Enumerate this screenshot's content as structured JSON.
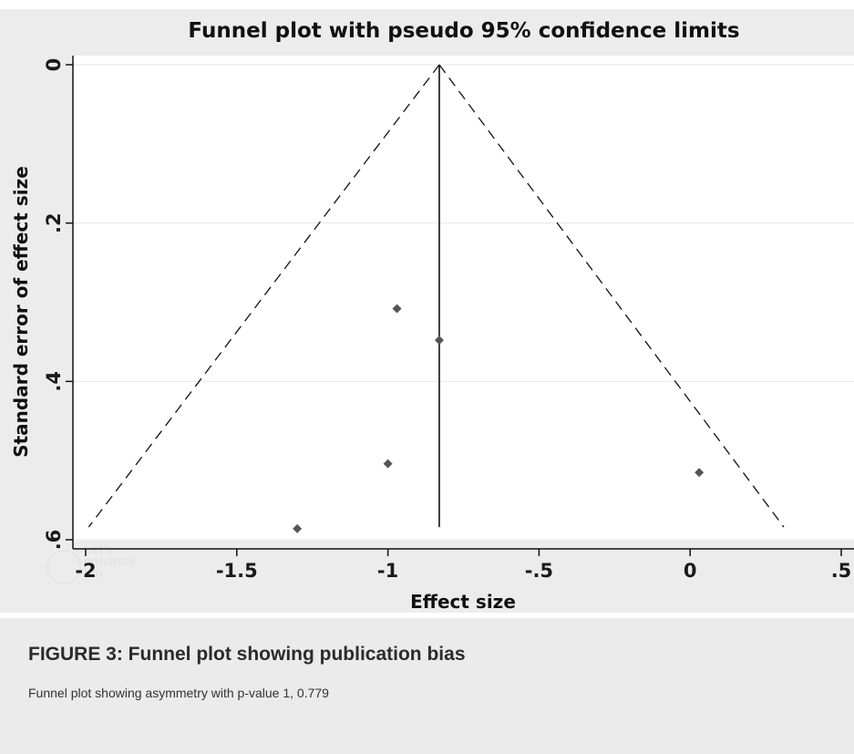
{
  "chart_data": {
    "type": "scatter",
    "title": "Funnel plot with pseudo 95% confidence limits",
    "xlabel": "Effect size",
    "ylabel": "Standard error of effect size",
    "xlim": [
      -2,
      0.5
    ],
    "ylim": [
      0,
      0.6
    ],
    "y_reversed": true,
    "x_ticks": [
      -2,
      -1.5,
      -1,
      -0.5,
      0,
      0.5
    ],
    "x_tick_labels": [
      "-2",
      "-1.5",
      "-1",
      "-.5",
      "0",
      ".5"
    ],
    "y_ticks": [
      0,
      0.2,
      0.4,
      0.6
    ],
    "y_tick_labels": [
      "0",
      ".2",
      ".4",
      ".6"
    ],
    "grid": "horizontal",
    "points": [
      {
        "x": -0.97,
        "y": 0.308
      },
      {
        "x": -0.83,
        "y": 0.348
      },
      {
        "x": -1.0,
        "y": 0.504
      },
      {
        "x": 0.03,
        "y": 0.515
      },
      {
        "x": -1.3,
        "y": 0.586
      }
    ],
    "pooled_estimate": -0.83,
    "pseudo_ci_lines": {
      "apex": {
        "x": -0.83,
        "y": 0
      },
      "left_end": {
        "x": -1.99,
        "y": 0.584
      },
      "right_end": {
        "x": 0.31,
        "y": 0.584
      }
    },
    "colors": {
      "panel": "#ececec",
      "plot_area": "#ffffff",
      "grid": "#e6e6e6",
      "marker": "#555555",
      "line": "#111111"
    },
    "watermark": [
      "Let's",
      "enhance",
      "bio"
    ]
  },
  "caption": {
    "title": "FIGURE 3: Funnel plot showing publication bias",
    "text": "Funnel plot showing asymmetry with p-value 1, 0.779"
  }
}
